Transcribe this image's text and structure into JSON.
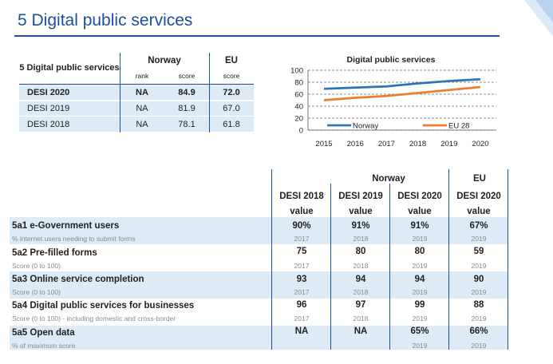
{
  "page": {
    "title": "5 Digital public services"
  },
  "summary": {
    "header": {
      "label": "5 Digital public services",
      "country": "Norway",
      "eu": "EU",
      "rank": "rank",
      "score": "score",
      "eu_score": "score"
    },
    "rows": [
      {
        "label": "DESI 2020",
        "rank": "NA",
        "score": "84.9",
        "eu": "72.0"
      },
      {
        "label": "DESI 2019",
        "rank": "NA",
        "score": "81.9",
        "eu": "67.0"
      },
      {
        "label": "DESI 2018",
        "rank": "NA",
        "score": "78.1",
        "eu": "61.8"
      }
    ]
  },
  "chart_data": {
    "type": "line",
    "title": "Digital public services",
    "x": [
      2015,
      2016,
      2017,
      2018,
      2019,
      2020
    ],
    "x_labels": [
      "2015",
      "2016",
      "2017",
      "2018",
      "2019",
      "2020"
    ],
    "ylim": [
      0,
      100
    ],
    "yticks": [
      0,
      20,
      40,
      60,
      80,
      100
    ],
    "ytick_labels": [
      "0",
      "20",
      "40",
      "60",
      "80",
      "100"
    ],
    "grid": true,
    "legend": "bottom",
    "series": [
      {
        "name": "Norway",
        "color": "#2e75b6",
        "values": [
          69,
          71,
          73,
          78,
          82,
          85
        ]
      },
      {
        "name": "EU 28",
        "color": "#ed7d31",
        "values": [
          50,
          54,
          57,
          62,
          67,
          72
        ]
      }
    ]
  },
  "indicators": {
    "group_norway": "Norway",
    "group_eu": "EU",
    "columns": [
      {
        "top": "DESI 2018",
        "bottom": "value"
      },
      {
        "top": "DESI 2019",
        "bottom": "value"
      },
      {
        "top": "DESI 2020",
        "bottom": "value"
      },
      {
        "top": "DESI 2020",
        "bottom": "value"
      }
    ],
    "rows": [
      {
        "label": "5a1 e-Government users",
        "sub": "% internet users needing to submit forms",
        "values": [
          "90%",
          "91%",
          "91%",
          "67%"
        ],
        "years": [
          "2017",
          "2018",
          "2019",
          "2019"
        ]
      },
      {
        "label": "5a2 Pre-filled forms",
        "sub": "Score (0 to 100)",
        "values": [
          "75",
          "80",
          "80",
          "59"
        ],
        "years": [
          "2017",
          "2018",
          "2019",
          "2019"
        ]
      },
      {
        "label": "5a3 Online service completion",
        "sub": "Score (0 to 100)",
        "values": [
          "93",
          "94",
          "94",
          "90"
        ],
        "years": [
          "2017",
          "2018",
          "2019",
          "2019"
        ]
      },
      {
        "label": "5a4 Digital public services for businesses",
        "sub": "Score (0 to 100) - including domestic and cross-border",
        "values": [
          "96",
          "97",
          "99",
          "88"
        ],
        "years": [
          "2017",
          "2018",
          "2019",
          "2019"
        ]
      },
      {
        "label": "5a5 Open data",
        "sub": "% of maximum score",
        "values": [
          "NA",
          "NA",
          "65%",
          "66%"
        ],
        "years": [
          "",
          "",
          "2019",
          "2019"
        ]
      }
    ]
  }
}
